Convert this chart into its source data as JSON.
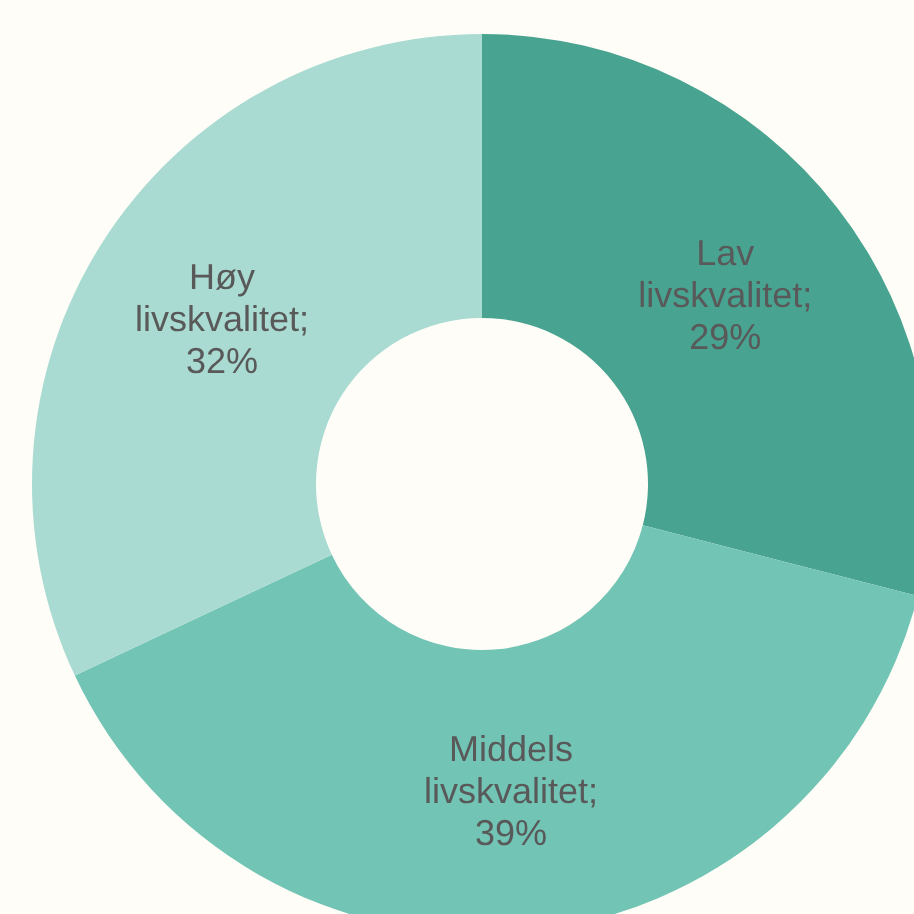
{
  "chart_data": {
    "type": "donut",
    "categories": [
      null,
      null,
      null
    ],
    "values": [
      29,
      39,
      32
    ],
    "value_labels": [
      "Lav livskvalitet; 29%",
      "Middels livskvalitet; 39%",
      "Høy livskvalitet; 32%"
    ],
    "colors": [
      "#48a391",
      "#72c4b5",
      "#a9dbd2"
    ],
    "legend": false
  }
}
